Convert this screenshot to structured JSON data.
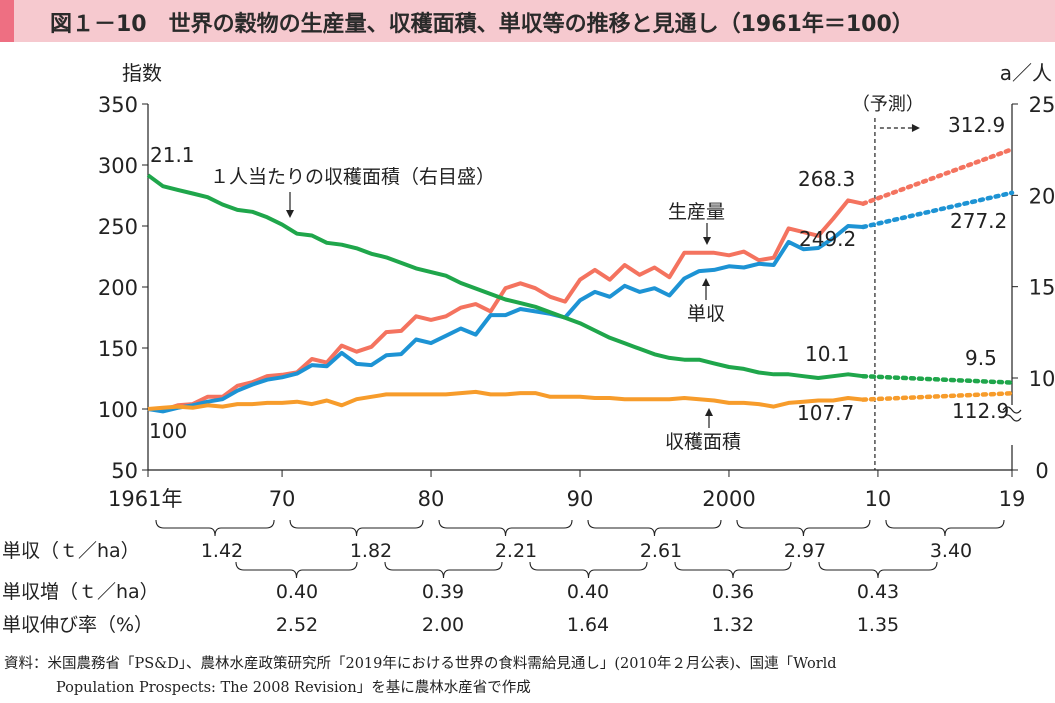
{
  "title": "図１－10　世界の穀物の生産量、収穫面積、単収等の推移と見通し（1961年＝100）",
  "chart_data": {
    "type": "line",
    "ylabel_left": "指数",
    "ylabel_right": "a／人",
    "ylim_left": [
      50,
      350
    ],
    "yticks_left": [
      "350",
      "300",
      "250",
      "200",
      "150",
      "100",
      "50"
    ],
    "ylim_right": [
      0,
      25
    ],
    "yticks_right": [
      "25",
      "20",
      "15",
      "10",
      "0"
    ],
    "xlim": [
      1961,
      2019
    ],
    "xticks": [
      "1961年",
      "70",
      "80",
      "90",
      "2000",
      "10",
      "19"
    ],
    "xtick_values": [
      1961,
      1970,
      1980,
      1990,
      2000,
      2010,
      2019
    ],
    "forecast_label": "（予測）",
    "forecast_start": 2010,
    "series": [
      {
        "name": "生産量",
        "axis": "left",
        "color": "#f4735f",
        "x": [
          1961,
          1962,
          1963,
          1964,
          1965,
          1966,
          1967,
          1968,
          1969,
          1970,
          1971,
          1972,
          1973,
          1974,
          1975,
          1976,
          1977,
          1978,
          1979,
          1980,
          1981,
          1982,
          1983,
          1984,
          1985,
          1986,
          1987,
          1988,
          1989,
          1990,
          1991,
          1992,
          1993,
          1994,
          1995,
          1996,
          1997,
          1998,
          1999,
          2000,
          2001,
          2002,
          2003,
          2004,
          2005,
          2006,
          2007,
          2008,
          2009
        ],
        "values": [
          100,
          99,
          103,
          104,
          110,
          110,
          119,
          122,
          127,
          128,
          130,
          141,
          138,
          152,
          147,
          151,
          163,
          164,
          176,
          173,
          176,
          183,
          186,
          180,
          199,
          203,
          199,
          192,
          188,
          206,
          214,
          206,
          218,
          210,
          216,
          208,
          228,
          228,
          228,
          226,
          229,
          222,
          224,
          248,
          245,
          242,
          256,
          271,
          268.3
        ],
        "forecast_x": [
          2009,
          2019
        ],
        "forecast_values": [
          268.3,
          312.9
        ]
      },
      {
        "name": "単収",
        "axis": "left",
        "color": "#1d93d4",
        "x": [
          1961,
          1962,
          1963,
          1964,
          1965,
          1966,
          1967,
          1968,
          1969,
          1970,
          1971,
          1972,
          1973,
          1974,
          1975,
          1976,
          1977,
          1978,
          1979,
          1980,
          1981,
          1982,
          1983,
          1984,
          1985,
          1986,
          1987,
          1988,
          1989,
          1990,
          1991,
          1992,
          1993,
          1994,
          1995,
          1996,
          1997,
          1998,
          1999,
          2000,
          2001,
          2002,
          2003,
          2004,
          2005,
          2006,
          2007,
          2008,
          2009
        ],
        "values": [
          100,
          98,
          101,
          103,
          106,
          108,
          115,
          120,
          124,
          126,
          129,
          136,
          135,
          146,
          137,
          136,
          144,
          145,
          157,
          154,
          160,
          166,
          161,
          177,
          177,
          182,
          180,
          178,
          175,
          189,
          196,
          192,
          201,
          196,
          199,
          193,
          207,
          213,
          214,
          217,
          216,
          219,
          218,
          237,
          231,
          232,
          240,
          250,
          249.2
        ],
        "forecast_x": [
          2009,
          2019
        ],
        "forecast_values": [
          249.2,
          277.2
        ]
      },
      {
        "name": "収穫面積",
        "axis": "left",
        "color": "#f79c2b",
        "x": [
          1961,
          1962,
          1963,
          1964,
          1965,
          1966,
          1967,
          1968,
          1969,
          1970,
          1971,
          1972,
          1973,
          1974,
          1975,
          1976,
          1977,
          1978,
          1979,
          1980,
          1981,
          1982,
          1983,
          1984,
          1985,
          1986,
          1987,
          1988,
          1989,
          1990,
          1991,
          1992,
          1993,
          1994,
          1995,
          1996,
          1997,
          1998,
          1999,
          2000,
          2001,
          2002,
          2003,
          2004,
          2005,
          2006,
          2007,
          2008,
          2009
        ],
        "values": [
          100,
          101,
          102,
          101,
          103,
          102,
          104,
          104,
          105,
          105,
          106,
          104,
          107,
          103,
          108,
          110,
          112,
          112,
          112,
          112,
          112,
          113,
          114,
          112,
          112,
          113,
          113,
          110,
          110,
          110,
          109,
          109,
          108,
          108,
          108,
          108,
          109,
          108,
          107,
          105,
          105,
          104,
          102,
          105,
          106,
          107,
          107,
          109,
          107.7
        ],
        "forecast_x": [
          2009,
          2019
        ],
        "forecast_values": [
          107.7,
          112.9
        ]
      },
      {
        "name": "１人当たりの収穫面積（右目盛）",
        "axis": "right",
        "color": "#1fa64b",
        "x": [
          1961,
          1962,
          1963,
          1964,
          1965,
          1966,
          1967,
          1968,
          1969,
          1970,
          1971,
          1972,
          1973,
          1974,
          1975,
          1976,
          1977,
          1978,
          1979,
          1980,
          1981,
          1982,
          1983,
          1984,
          1985,
          1986,
          1987,
          1988,
          1989,
          1990,
          1991,
          1992,
          1993,
          1994,
          1995,
          1996,
          1997,
          1998,
          1999,
          2000,
          2001,
          2002,
          2003,
          2004,
          2005,
          2006,
          2007,
          2008,
          2009
        ],
        "values": [
          21.1,
          20.5,
          20.3,
          20.1,
          19.9,
          19.5,
          19.2,
          19.1,
          18.8,
          18.4,
          17.9,
          17.8,
          17.4,
          17.3,
          17.1,
          16.8,
          16.6,
          16.3,
          16.0,
          15.8,
          15.6,
          15.2,
          14.9,
          14.6,
          14.3,
          14.1,
          13.9,
          13.6,
          13.3,
          13.0,
          12.6,
          12.2,
          11.9,
          11.6,
          11.3,
          11.1,
          11.0,
          11.0,
          10.8,
          10.6,
          10.5,
          10.3,
          10.2,
          10.2,
          10.1,
          10.0,
          10.1,
          10.2,
          10.1
        ],
        "forecast_x": [
          2009,
          2019
        ],
        "forecast_values": [
          10.1,
          9.5
        ]
      }
    ],
    "annotations": {
      "start_area_per_capita": "21.1",
      "start_index": "100",
      "production_2009": "268.3",
      "yield_2009": "249.2",
      "area_per_capita_2009": "10.1",
      "area_2009": "107.7",
      "production_2019": "312.9",
      "yield_2019": "277.2",
      "area_per_capita_2019": "9.5",
      "area_2019": "112.9",
      "label_production": "生産量",
      "label_yield": "単収",
      "label_area": "収穫面積",
      "label_area_per_capita": "１人当たりの収穫面積（右目盛）"
    }
  },
  "table": {
    "yield_label": "単収（ｔ／ha）",
    "yield_values": [
      "1.42",
      "1.82",
      "2.21",
      "2.61",
      "2.97",
      "3.40"
    ],
    "increase_label": "単収増（ｔ／ha）",
    "increase_values": [
      "0.40",
      "0.39",
      "0.40",
      "0.36",
      "0.43"
    ],
    "growth_label": "単収伸び率（%）",
    "growth_values": [
      "2.52",
      "2.00",
      "1.64",
      "1.32",
      "1.35"
    ]
  },
  "source": {
    "line1": "資料：米国農務省「PS&D」、農林水産政策研究所「2019年における世界の食料需給見通し」(2010年２月公表)、国連「World",
    "line2": "Population Prospects: The 2008 Revision」を基に農林水産省で作成"
  }
}
